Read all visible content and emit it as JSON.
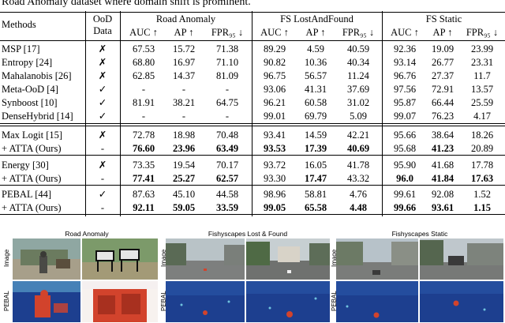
{
  "caption": "Road Anomaly dataset where domain shift is prominent.",
  "table": {
    "header": {
      "methods": "Methods",
      "ood_line1": "OoD",
      "ood_line2": "Data",
      "groups": [
        "Road Anomaly",
        "FS LostAndFound",
        "FS Static"
      ],
      "metrics": [
        "AUC ↑",
        "AP ↑",
        "FPR₉₅ ↓",
        "AUC ↑",
        "AP ↑",
        "FPR₉₅ ↓",
        "AUC ↑",
        "AP ↑",
        "FPR₉₅ ↓"
      ]
    },
    "rows": [
      {
        "method": "MSP [17]",
        "ood": "✗",
        "vals": [
          "67.53",
          "15.72",
          "71.38",
          "89.29",
          "4.59",
          "40.59",
          "92.36",
          "19.09",
          "23.99"
        ],
        "bold": []
      },
      {
        "method": "Entropy [24]",
        "ood": "✗",
        "vals": [
          "68.80",
          "16.97",
          "71.10",
          "90.82",
          "10.36",
          "40.34",
          "93.14",
          "26.77",
          "23.31"
        ],
        "bold": []
      },
      {
        "method": "Mahalanobis [26]",
        "ood": "✗",
        "vals": [
          "62.85",
          "14.37",
          "81.09",
          "96.75",
          "56.57",
          "11.24",
          "96.76",
          "27.37",
          "11.7"
        ],
        "bold": []
      },
      {
        "method": "Meta-OoD [4]",
        "ood": "✓",
        "vals": [
          "-",
          "-",
          "-",
          "93.06",
          "41.31",
          "37.69",
          "97.56",
          "72.91",
          "13.57"
        ],
        "bold": []
      },
      {
        "method": "Synboost [10]",
        "ood": "✓",
        "vals": [
          "81.91",
          "38.21",
          "64.75",
          "96.21",
          "60.58",
          "31.02",
          "95.87",
          "66.44",
          "25.59"
        ],
        "bold": []
      },
      {
        "method": "DenseHybrid [14]",
        "ood": "✓",
        "vals": [
          "-",
          "-",
          "-",
          "99.01",
          "69.79",
          "5.09",
          "99.07",
          "76.23",
          "4.17"
        ],
        "bold": []
      },
      {
        "method": "Max Logit [15]",
        "ood": "✗",
        "vals": [
          "72.78",
          "18.98",
          "70.48",
          "93.41",
          "14.59",
          "42.21",
          "95.66",
          "38.64",
          "18.26"
        ],
        "bold": []
      },
      {
        "method": "+ ATTA (Ours)",
        "ood": "-",
        "vals": [
          "76.60",
          "23.96",
          "63.49",
          "93.53",
          "17.39",
          "40.69",
          "95.68",
          "41.23",
          "20.89"
        ],
        "bold": [
          0,
          1,
          2,
          3,
          4,
          5,
          7
        ]
      },
      {
        "method": "Energy [30]",
        "ood": "✗",
        "vals": [
          "73.35",
          "19.54",
          "70.17",
          "93.72",
          "16.05",
          "41.78",
          "95.90",
          "41.68",
          "17.78"
        ],
        "bold": []
      },
      {
        "method": "+ ATTA (Ours)",
        "ood": "-",
        "vals": [
          "77.41",
          "25.27",
          "62.57",
          "93.30",
          "17.47",
          "43.32",
          "96.0",
          "41.84",
          "17.63"
        ],
        "bold": [
          0,
          1,
          2,
          4,
          6,
          7,
          8
        ]
      },
      {
        "method": "PEBAL [44]",
        "ood": "✓",
        "vals": [
          "87.63",
          "45.10",
          "44.58",
          "98.96",
          "58.81",
          "4.76",
          "99.61",
          "92.08",
          "1.52"
        ],
        "bold": []
      },
      {
        "method": "+ ATTA (Ours)",
        "ood": "-",
        "vals": [
          "92.11",
          "59.05",
          "33.59",
          "99.05",
          "65.58",
          "4.48",
          "99.66",
          "93.61",
          "1.15"
        ],
        "bold": [
          0,
          1,
          2,
          3,
          4,
          5,
          6,
          7,
          8
        ]
      }
    ]
  },
  "figure": {
    "panel_titles": [
      "Road Anomaly",
      "Fishyscapes Lost & Found",
      "Fishyscapes Static"
    ],
    "row_labels": [
      "Image",
      "PEBAL"
    ],
    "colors": {
      "map_blue": "#1d3f8f",
      "map_red": "#d2432c",
      "map_cyan": "#6fc3df"
    }
  }
}
